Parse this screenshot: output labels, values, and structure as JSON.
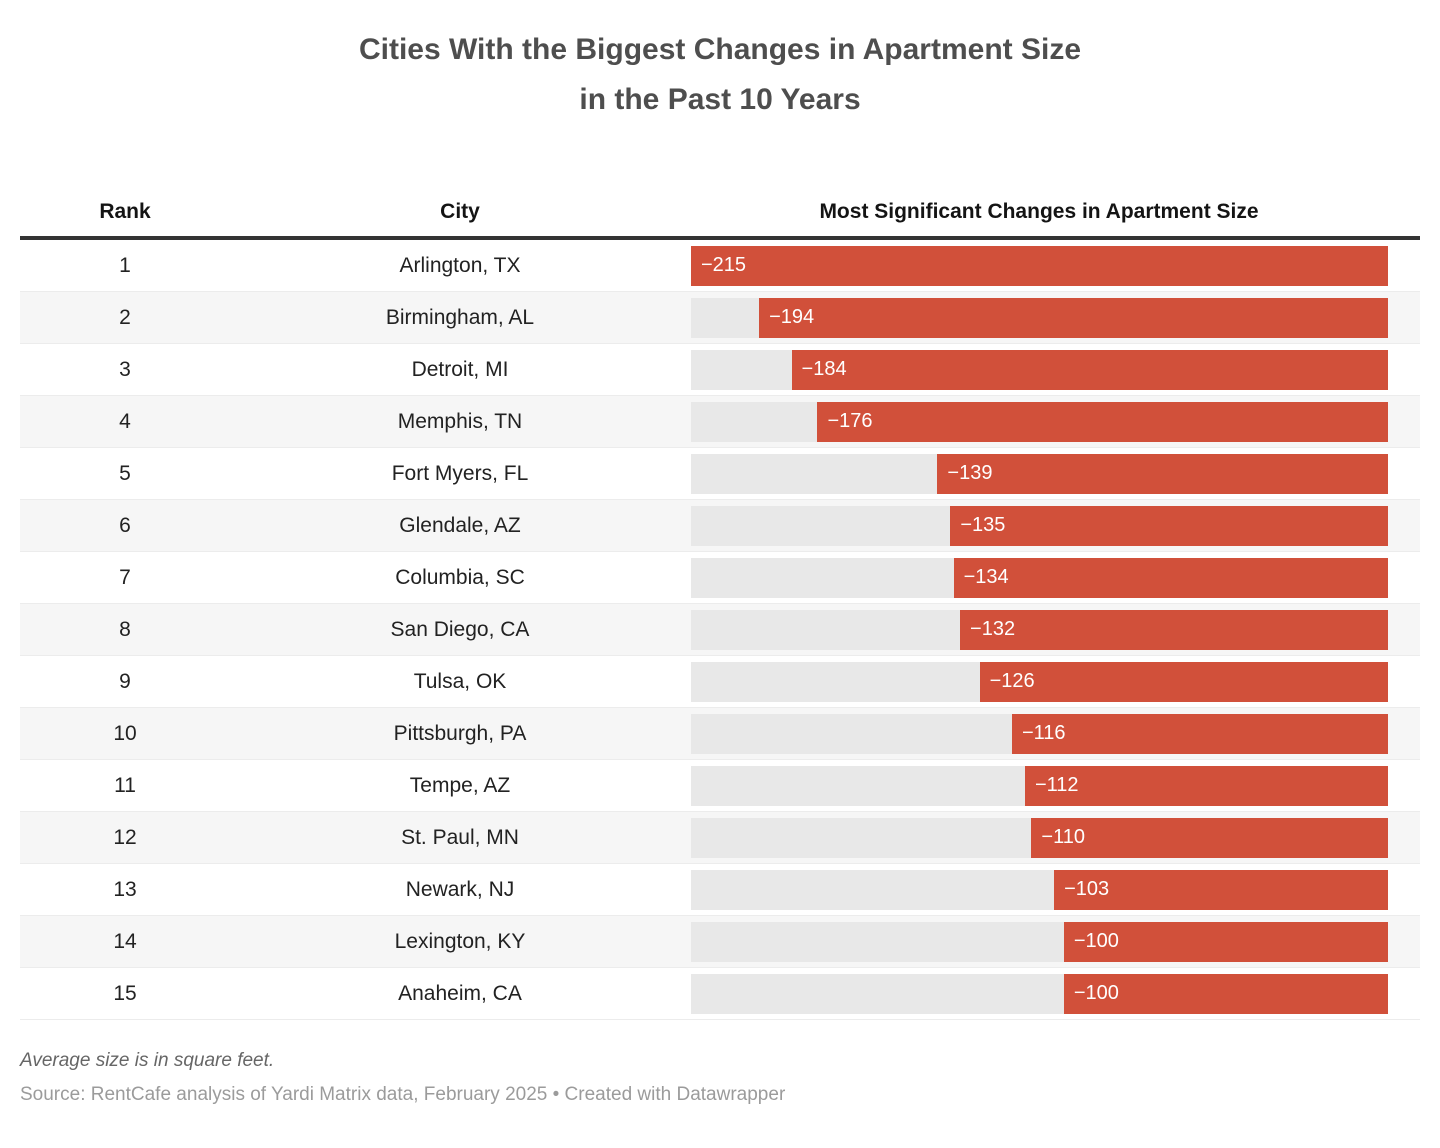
{
  "title": {
    "line1": "Cities With the Biggest Changes in Apartment Size",
    "line2": "in the Past 10 Years"
  },
  "table": {
    "columns": [
      "Rank",
      "City",
      "Most Significant Changes in Apartment Size"
    ],
    "rows": [
      {
        "rank": "1",
        "city": "Arlington, TX",
        "value": -215,
        "label": "−215"
      },
      {
        "rank": "2",
        "city": "Birmingham, AL",
        "value": -194,
        "label": "−194"
      },
      {
        "rank": "3",
        "city": "Detroit, MI",
        "value": -184,
        "label": "−184"
      },
      {
        "rank": "4",
        "city": "Memphis, TN",
        "value": -176,
        "label": "−176"
      },
      {
        "rank": "5",
        "city": "Fort Myers, FL",
        "value": -139,
        "label": "−139"
      },
      {
        "rank": "6",
        "city": "Glendale, AZ",
        "value": -135,
        "label": "−135"
      },
      {
        "rank": "7",
        "city": "Columbia, SC",
        "value": -134,
        "label": "−134"
      },
      {
        "rank": "8",
        "city": "San Diego, CA",
        "value": -132,
        "label": "−132"
      },
      {
        "rank": "9",
        "city": "Tulsa, OK",
        "value": -126,
        "label": "−126"
      },
      {
        "rank": "10",
        "city": "Pittsburgh, PA",
        "value": -116,
        "label": "−116"
      },
      {
        "rank": "11",
        "city": "Tempe, AZ",
        "value": -112,
        "label": "−112"
      },
      {
        "rank": "12",
        "city": "St. Paul, MN",
        "value": -110,
        "label": "−110"
      },
      {
        "rank": "13",
        "city": "Newark, NJ",
        "value": -103,
        "label": "−103"
      },
      {
        "rank": "14",
        "city": "Lexington, KY",
        "value": -100,
        "label": "−100"
      },
      {
        "rank": "15",
        "city": "Anaheim, CA",
        "value": -100,
        "label": "−100"
      }
    ]
  },
  "footer": {
    "note": "Average size is in square feet.",
    "source": "Source: RentCafe analysis of Yardi Matrix data, February 2025 • Created with Datawrapper"
  },
  "colors": {
    "bar": "#d1503a",
    "track": "#e8e8e8",
    "stripe": "#f6f6f6",
    "header_rule": "#333333"
  },
  "chart_data": {
    "type": "bar",
    "title": "Cities With the Biggest Changes in Apartment Size in the Past 10 Years",
    "categories": [
      "Arlington, TX",
      "Birmingham, AL",
      "Detroit, MI",
      "Memphis, TN",
      "Fort Myers, FL",
      "Glendale, AZ",
      "Columbia, SC",
      "San Diego, CA",
      "Tulsa, OK",
      "Pittsburgh, PA",
      "Tempe, AZ",
      "St. Paul, MN",
      "Newark, NJ",
      "Lexington, KY",
      "Anaheim, CA"
    ],
    "values": [
      -215,
      -194,
      -184,
      -176,
      -139,
      -135,
      -134,
      -132,
      -126,
      -116,
      -112,
      -110,
      -103,
      -100,
      -100
    ],
    "xlabel": "Most Significant Changes in Apartment Size",
    "ylabel": "City",
    "unit": "square feet",
    "xmax": 215,
    "orientation": "horizontal",
    "bar_anchor": "right",
    "grid": false,
    "legend": false,
    "note": "Average size is in square feet.",
    "source": "RentCafe analysis of Yardi Matrix data, February 2025"
  }
}
